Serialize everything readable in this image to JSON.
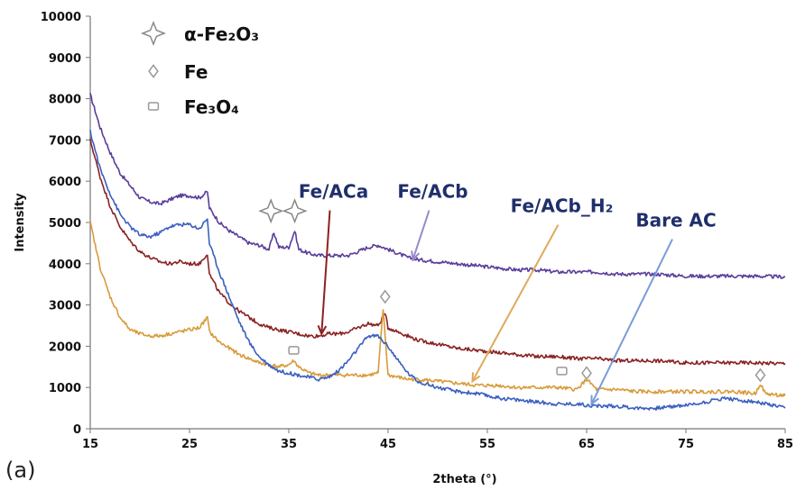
{
  "panel_label": "(a)",
  "chart_data": {
    "type": "line",
    "title": "",
    "xlabel": "2theta (°)",
    "ylabel": "Intensity",
    "xlim": [
      15,
      85
    ],
    "ylim": [
      0,
      10000
    ],
    "xticks": [
      15,
      25,
      35,
      45,
      55,
      65,
      75,
      85
    ],
    "yticks": [
      0,
      1000,
      2000,
      3000,
      4000,
      5000,
      6000,
      7000,
      8000,
      9000,
      10000
    ],
    "grid": false,
    "legend": {
      "placement": "top-left",
      "entries": [
        {
          "label": "α-Fe₂O₃",
          "marker": "four-point-star"
        },
        {
          "label": "Fe",
          "marker": "diamond"
        },
        {
          "label": "Fe₃O₄",
          "marker": "square"
        }
      ]
    },
    "series": [
      {
        "name": "Fe/ACb",
        "color": "#5a3d9a",
        "points": [
          [
            15,
            8100
          ],
          [
            16,
            7300
          ],
          [
            17,
            6700
          ],
          [
            18,
            6200
          ],
          [
            19,
            5900
          ],
          [
            20,
            5600
          ],
          [
            21,
            5500
          ],
          [
            22,
            5450
          ],
          [
            23,
            5550
          ],
          [
            24,
            5650
          ],
          [
            25,
            5650
          ],
          [
            26,
            5600
          ],
          [
            26.8,
            5750
          ],
          [
            27,
            5350
          ],
          [
            28,
            5000
          ],
          [
            29,
            4800
          ],
          [
            30,
            4650
          ],
          [
            31,
            4500
          ],
          [
            32,
            4450
          ],
          [
            33,
            4350
          ],
          [
            33.5,
            4750
          ],
          [
            34,
            4400
          ],
          [
            35,
            4400
          ],
          [
            35.6,
            4800
          ],
          [
            36,
            4350
          ],
          [
            37,
            4250
          ],
          [
            38,
            4200
          ],
          [
            39,
            4200
          ],
          [
            40,
            4200
          ],
          [
            41,
            4200
          ],
          [
            42,
            4300
          ],
          [
            43,
            4400
          ],
          [
            44,
            4450
          ],
          [
            45,
            4350
          ],
          [
            46,
            4250
          ],
          [
            47,
            4150
          ],
          [
            48,
            4100
          ],
          [
            50,
            4050
          ],
          [
            52,
            4000
          ],
          [
            54,
            3950
          ],
          [
            56,
            3900
          ],
          [
            58,
            3850
          ],
          [
            60,
            3850
          ],
          [
            62,
            3800
          ],
          [
            64,
            3800
          ],
          [
            66,
            3800
          ],
          [
            68,
            3750
          ],
          [
            70,
            3750
          ],
          [
            72,
            3750
          ],
          [
            75,
            3700
          ],
          [
            78,
            3700
          ],
          [
            80,
            3700
          ],
          [
            82,
            3700
          ],
          [
            85,
            3680
          ]
        ]
      },
      {
        "name": "Fe/ACa",
        "color": "#8b2222",
        "points": [
          [
            15,
            7000
          ],
          [
            16,
            6100
          ],
          [
            17,
            5400
          ],
          [
            18,
            4900
          ],
          [
            19,
            4550
          ],
          [
            20,
            4300
          ],
          [
            21,
            4150
          ],
          [
            22,
            4050
          ],
          [
            23,
            4000
          ],
          [
            24,
            4050
          ],
          [
            25,
            4000
          ],
          [
            26,
            4000
          ],
          [
            26.8,
            4250
          ],
          [
            27,
            3750
          ],
          [
            28,
            3300
          ],
          [
            29,
            3050
          ],
          [
            30,
            2850
          ],
          [
            31,
            2700
          ],
          [
            32,
            2550
          ],
          [
            33,
            2450
          ],
          [
            34,
            2400
          ],
          [
            35,
            2350
          ],
          [
            36,
            2300
          ],
          [
            37,
            2250
          ],
          [
            38,
            2250
          ],
          [
            39,
            2300
          ],
          [
            40,
            2300
          ],
          [
            41,
            2350
          ],
          [
            42,
            2450
          ],
          [
            43,
            2550
          ],
          [
            44,
            2500
          ],
          [
            44.7,
            2800
          ],
          [
            45,
            2450
          ],
          [
            46,
            2350
          ],
          [
            47,
            2250
          ],
          [
            48,
            2150
          ],
          [
            50,
            2050
          ],
          [
            52,
            1950
          ],
          [
            54,
            1900
          ],
          [
            56,
            1850
          ],
          [
            58,
            1800
          ],
          [
            60,
            1750
          ],
          [
            62,
            1750
          ],
          [
            64,
            1700
          ],
          [
            66,
            1700
          ],
          [
            68,
            1650
          ],
          [
            70,
            1650
          ],
          [
            72,
            1650
          ],
          [
            75,
            1600
          ],
          [
            78,
            1600
          ],
          [
            80,
            1600
          ],
          [
            82,
            1600
          ],
          [
            85,
            1580
          ]
        ]
      },
      {
        "name": "Fe/ACb_H₂",
        "color": "#d89b3a",
        "points": [
          [
            15,
            5000
          ],
          [
            16,
            3900
          ],
          [
            17,
            3200
          ],
          [
            18,
            2700
          ],
          [
            19,
            2400
          ],
          [
            20,
            2300
          ],
          [
            21,
            2250
          ],
          [
            22,
            2250
          ],
          [
            23,
            2300
          ],
          [
            24,
            2350
          ],
          [
            25,
            2400
          ],
          [
            26,
            2450
          ],
          [
            26.8,
            2700
          ],
          [
            27,
            2350
          ],
          [
            28,
            2100
          ],
          [
            29,
            1950
          ],
          [
            30,
            1800
          ],
          [
            31,
            1700
          ],
          [
            32,
            1600
          ],
          [
            33,
            1550
          ],
          [
            34,
            1500
          ],
          [
            35,
            1550
          ],
          [
            35.5,
            1650
          ],
          [
            36,
            1500
          ],
          [
            37,
            1350
          ],
          [
            38,
            1300
          ],
          [
            39,
            1300
          ],
          [
            40,
            1300
          ],
          [
            41,
            1300
          ],
          [
            42,
            1300
          ],
          [
            43,
            1300
          ],
          [
            44,
            1350
          ],
          [
            44.5,
            2900
          ],
          [
            45,
            1300
          ],
          [
            46,
            1250
          ],
          [
            47,
            1200
          ],
          [
            48,
            1200
          ],
          [
            50,
            1150
          ],
          [
            52,
            1100
          ],
          [
            54,
            1050
          ],
          [
            56,
            1050
          ],
          [
            58,
            1000
          ],
          [
            60,
            1000
          ],
          [
            62,
            1000
          ],
          [
            64,
            950
          ],
          [
            65,
            1200
          ],
          [
            66,
            950
          ],
          [
            68,
            950
          ],
          [
            70,
            900
          ],
          [
            72,
            900
          ],
          [
            75,
            900
          ],
          [
            78,
            900
          ],
          [
            80,
            900
          ],
          [
            82,
            850
          ],
          [
            82.5,
            1100
          ],
          [
            83,
            850
          ],
          [
            85,
            800
          ]
        ]
      },
      {
        "name": "Bare AC",
        "color": "#3a5fbf",
        "points": [
          [
            15,
            7200
          ],
          [
            16,
            6300
          ],
          [
            17,
            5700
          ],
          [
            18,
            5200
          ],
          [
            19,
            4900
          ],
          [
            20,
            4700
          ],
          [
            21,
            4650
          ],
          [
            22,
            4750
          ],
          [
            23,
            4900
          ],
          [
            24,
            4950
          ],
          [
            25,
            4950
          ],
          [
            26,
            4850
          ],
          [
            26.8,
            5100
          ],
          [
            27,
            4500
          ],
          [
            28,
            3800
          ],
          [
            29,
            3200
          ],
          [
            30,
            2600
          ],
          [
            31,
            2100
          ],
          [
            32,
            1750
          ],
          [
            33,
            1550
          ],
          [
            34,
            1400
          ],
          [
            35,
            1350
          ],
          [
            36,
            1300
          ],
          [
            37,
            1250
          ],
          [
            38,
            1200
          ],
          [
            39,
            1250
          ],
          [
            40,
            1400
          ],
          [
            41,
            1650
          ],
          [
            42,
            1950
          ],
          [
            43,
            2250
          ],
          [
            44,
            2250
          ],
          [
            45,
            2000
          ],
          [
            46,
            1650
          ],
          [
            47,
            1350
          ],
          [
            48,
            1150
          ],
          [
            50,
            1000
          ],
          [
            52,
            900
          ],
          [
            54,
            850
          ],
          [
            56,
            750
          ],
          [
            58,
            700
          ],
          [
            60,
            650
          ],
          [
            62,
            600
          ],
          [
            64,
            600
          ],
          [
            66,
            550
          ],
          [
            68,
            550
          ],
          [
            70,
            500
          ],
          [
            72,
            500
          ],
          [
            74,
            550
          ],
          [
            76,
            600
          ],
          [
            78,
            700
          ],
          [
            79,
            750
          ],
          [
            80,
            700
          ],
          [
            82,
            650
          ],
          [
            84,
            550
          ],
          [
            85,
            500
          ]
        ]
      }
    ],
    "peak_markers": [
      {
        "phase": "α-Fe₂O₃",
        "marker": "four-point-star",
        "x": 33.2,
        "y": 5280
      },
      {
        "phase": "α-Fe₂O₃",
        "marker": "four-point-star",
        "x": 35.6,
        "y": 5280
      },
      {
        "phase": "Fe",
        "marker": "diamond",
        "x": 44.7,
        "y": 3200
      },
      {
        "phase": "Fe",
        "marker": "diamond",
        "x": 65.0,
        "y": 1350
      },
      {
        "phase": "Fe",
        "marker": "diamond",
        "x": 82.5,
        "y": 1300
      },
      {
        "phase": "Fe₃O₄",
        "marker": "square",
        "x": 35.5,
        "y": 1900
      },
      {
        "phase": "Fe₃O₄",
        "marker": "square",
        "x": 62.5,
        "y": 1400
      }
    ],
    "annotations": [
      {
        "text": "Fe/ACa",
        "series": "Fe/ACa",
        "color": "#8b2222",
        "label_pos": [
          39.5,
          5600
        ],
        "tip": [
          38.3,
          2300
        ]
      },
      {
        "text": "Fe/ACb",
        "series": "Fe/ACb",
        "color": "#9b88cc",
        "label_pos": [
          49.5,
          5600
        ],
        "tip": [
          47.5,
          4100
        ]
      },
      {
        "text": "Fe/ACb_H₂",
        "series": "Fe/ACb_H₂",
        "color": "#e0a95a",
        "label_pos": [
          62.5,
          5250
        ],
        "tip": [
          53.5,
          1150
        ]
      },
      {
        "text": "Bare AC",
        "series": "Bare AC",
        "color": "#7a9cd6",
        "label_pos": [
          74,
          4900
        ],
        "tip": [
          65.5,
          600
        ]
      }
    ]
  }
}
